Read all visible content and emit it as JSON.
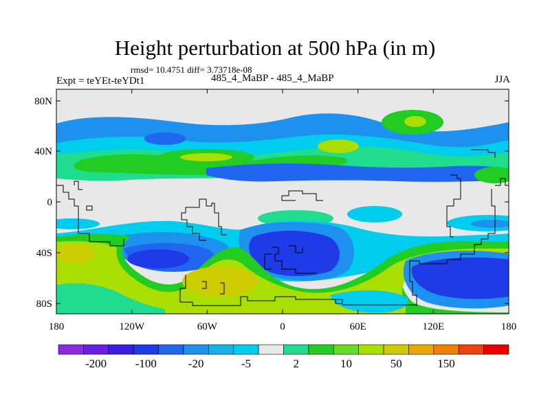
{
  "title": "Height perturbation at 500 hPa (in m)",
  "subtitle_stats": "rmsd= 10.4751 diff= 3.73718e-08",
  "left_label": "Expt = teYEt-teYDt1",
  "center_label": "485_4_MaBP - 485_4_MaBP",
  "right_label": "JJA",
  "axes": {
    "lat_ticks": [
      "80N",
      "40N",
      "0",
      "40S",
      "80S"
    ],
    "lon_ticks": [
      "180",
      "120W",
      "60W",
      "0",
      "60E",
      "120E",
      "180"
    ]
  },
  "colorbar": {
    "colors": [
      "#8a2be2",
      "#6a1de6",
      "#3a1ee0",
      "#1f3be8",
      "#2066ee",
      "#1e90ee",
      "#12b3e6",
      "#00ccee",
      "#e8e8e8",
      "#1fdc8f",
      "#22cc22",
      "#66dd22",
      "#aadd00",
      "#cccc00",
      "#e6aa00",
      "#f08000",
      "#f04010",
      "#e80000"
    ],
    "labels": [
      "-200",
      "-100",
      "-20",
      "-5",
      "2",
      "10",
      "50",
      "150"
    ]
  },
  "colors": {
    "land_gray": "#e8e8e8",
    "dark_blue": "#1f3be8",
    "light_blue": "#1e90ee",
    "cyan": "#12b3e6",
    "aqua": "#00ccee",
    "teal_green": "#1fdc8f",
    "green": "#22cc22",
    "yellow_green": "#aadd00",
    "olive": "#cccc00"
  }
}
